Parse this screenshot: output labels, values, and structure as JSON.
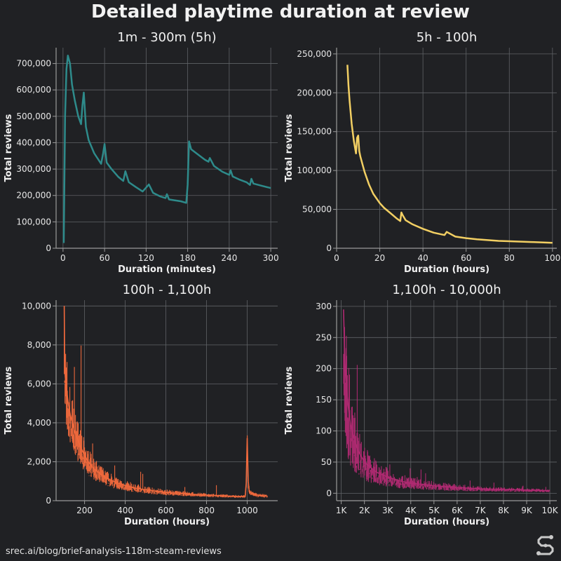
{
  "title": "Detailed playtime duration at review",
  "footer": "srec.ai/blog/brief-analysis-118m-steam-reviews",
  "logo_icon": "srec-logo-icon",
  "colors": {
    "background": "#202124",
    "grid": "#5f6266",
    "axis": "#9a9a9a"
  },
  "chart_data": [
    {
      "type": "line",
      "title": "1m - 300m (5h)",
      "xlabel": "Duration (minutes)",
      "ylabel": "Total reviews",
      "color": "#2e8b8b",
      "xlim": [
        -10,
        310
      ],
      "ylim": [
        0,
        760000
      ],
      "xticks": [
        0,
        60,
        120,
        180,
        240,
        300
      ],
      "xtick_labels": [
        "0",
        "60",
        "120",
        "180",
        "240",
        "300"
      ],
      "yticks": [
        0,
        100000,
        200000,
        300000,
        400000,
        500000,
        600000,
        700000
      ],
      "ytick_labels": [
        "0",
        "100,000",
        "200,000",
        "300,000",
        "400,000",
        "500,000",
        "600,000",
        "700,000"
      ],
      "grid": true,
      "noise": 0,
      "x": [
        1,
        3,
        5,
        7,
        10,
        13,
        17,
        22,
        26,
        28,
        30,
        33,
        37,
        45,
        55,
        58,
        60,
        63,
        70,
        80,
        87,
        90,
        95,
        105,
        115,
        120,
        124,
        130,
        140,
        148,
        150,
        153,
        160,
        170,
        178,
        180,
        182,
        185,
        195,
        205,
        210,
        212,
        218,
        230,
        240,
        242,
        245,
        255,
        265,
        270,
        272,
        275,
        285,
        300
      ],
      "y": [
        20000,
        500000,
        680000,
        730000,
        700000,
        620000,
        560000,
        500000,
        470000,
        540000,
        590000,
        460000,
        410000,
        360000,
        320000,
        360000,
        395000,
        325000,
        300000,
        270000,
        255000,
        292000,
        250000,
        232000,
        215000,
        230000,
        242000,
        210000,
        197000,
        190000,
        205000,
        185000,
        182000,
        178000,
        172000,
        240000,
        405000,
        375000,
        355000,
        335000,
        328000,
        342000,
        312000,
        290000,
        278000,
        295000,
        272000,
        260000,
        250000,
        240000,
        263000,
        245000,
        238000,
        228000
      ]
    },
    {
      "type": "line",
      "title": "5h - 100h",
      "xlabel": "Duration (hours)",
      "ylabel": "Total reviews",
      "color": "#f2cf63",
      "xlim": [
        0,
        102
      ],
      "ylim": [
        0,
        258000
      ],
      "xticks": [
        0,
        20,
        40,
        60,
        80,
        100
      ],
      "xtick_labels": [
        "0",
        "20",
        "40",
        "60",
        "80",
        "100"
      ],
      "yticks": [
        0,
        50000,
        100000,
        150000,
        200000,
        250000
      ],
      "ytick_labels": [
        "0",
        "50,000",
        "100,000",
        "150,000",
        "200,000",
        "250,000"
      ],
      "grid": true,
      "noise": 0,
      "x": [
        5,
        5.5,
        6,
        7,
        8,
        9,
        9.5,
        10,
        10.5,
        11,
        12,
        13,
        15,
        17,
        20,
        22,
        25,
        28,
        29.5,
        30,
        30.5,
        32,
        35,
        40,
        45,
        50,
        51,
        55,
        60,
        65,
        70,
        75,
        80,
        90,
        100
      ],
      "y": [
        236000,
        210000,
        190000,
        160000,
        138000,
        122000,
        142000,
        145000,
        125000,
        118000,
        108000,
        98000,
        82000,
        70000,
        58000,
        52000,
        45000,
        38000,
        35000,
        46000,
        43000,
        36000,
        31000,
        25000,
        20000,
        17000,
        21000,
        15000,
        13000,
        11500,
        10500,
        9500,
        9000,
        8000,
        7000
      ]
    },
    {
      "type": "line",
      "title": "100h - 1,100h",
      "xlabel": "Duration (hours)",
      "ylabel": "Total reviews",
      "color": "#f26a3d",
      "xlim": [
        60,
        1150
      ],
      "ylim": [
        0,
        10300
      ],
      "xticks": [
        200,
        400,
        600,
        800,
        1000
      ],
      "xtick_labels": [
        "200",
        "400",
        "600",
        "800",
        "1000"
      ],
      "yticks": [
        0,
        2000,
        4000,
        6000,
        8000,
        10000
      ],
      "ytick_labels": [
        "0",
        "2,000",
        "4,000",
        "6,000",
        "8,000",
        "10,000"
      ],
      "grid": true,
      "noise": 0.35,
      "x": [
        100,
        102,
        105,
        110,
        120,
        130,
        150,
        175,
        200,
        225,
        250,
        300,
        350,
        400,
        450,
        500,
        600,
        700,
        800,
        900,
        990,
        995,
        1000,
        1005,
        1010,
        1050,
        1100
      ],
      "y": [
        10000,
        7200,
        6400,
        5800,
        5000,
        4400,
        3600,
        2900,
        2300,
        1900,
        1600,
        1200,
        950,
        780,
        650,
        560,
        430,
        350,
        290,
        240,
        210,
        900,
        3200,
        1000,
        450,
        280,
        230
      ]
    },
    {
      "type": "line",
      "title": "1,100h - 10,000h",
      "xlabel": "Duration (hours)",
      "ylabel": "Total reviews",
      "color": "#b02a72",
      "xlim": [
        800,
        10300
      ],
      "ylim": [
        -12,
        310
      ],
      "xticks": [
        1000,
        2000,
        3000,
        4000,
        5000,
        6000,
        7000,
        8000,
        9000,
        10000
      ],
      "xtick_labels": [
        "1K",
        "2K",
        "3K",
        "4K",
        "5K",
        "6K",
        "7K",
        "8K",
        "9K",
        "10K"
      ],
      "yticks": [
        0,
        50,
        100,
        150,
        200,
        250,
        300
      ],
      "ytick_labels": [
        "0",
        "50",
        "100",
        "150",
        "200",
        "250",
        "300"
      ],
      "grid": true,
      "noise": 0.6,
      "x": [
        1100,
        1130,
        1160,
        1200,
        1300,
        1400,
        1500,
        1700,
        2000,
        2500,
        3000,
        3500,
        4000,
        5000,
        6000,
        7000,
        8000,
        9000,
        10000
      ],
      "y": [
        295,
        250,
        210,
        180,
        140,
        110,
        95,
        70,
        50,
        34,
        26,
        20,
        16,
        12,
        9,
        7,
        6,
        5,
        4
      ]
    }
  ]
}
